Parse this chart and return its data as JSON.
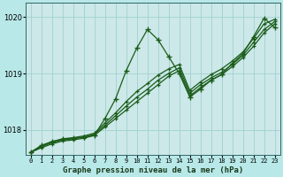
{
  "background_color": "#b8e8e8",
  "plot_bg_color": "#cce8e8",
  "grid_color": "#99cccc",
  "line_color": "#1a5c1a",
  "xlabel": "Graphe pression niveau de la mer (hPa)",
  "hours": [
    0,
    1,
    2,
    3,
    4,
    5,
    6,
    7,
    8,
    9,
    10,
    11,
    12,
    13,
    14,
    15,
    16,
    17,
    18,
    19,
    20,
    21,
    22,
    23
  ],
  "series_jagged": [
    1017.6,
    1017.72,
    1017.79,
    1017.83,
    1017.85,
    1017.87,
    1017.9,
    1018.2,
    1018.55,
    1019.05,
    1019.45,
    1019.78,
    1019.6,
    1019.3,
    1019.0,
    1018.58,
    1018.72,
    1018.88,
    1018.98,
    1019.18,
    1019.35,
    1019.65,
    1019.98,
    1019.82
  ],
  "series_low": [
    1017.6,
    1017.68,
    1017.75,
    1017.8,
    1017.82,
    1017.85,
    1017.9,
    1018.05,
    1018.2,
    1018.35,
    1018.5,
    1018.65,
    1018.8,
    1018.95,
    1019.05,
    1018.6,
    1018.75,
    1018.88,
    1018.98,
    1019.12,
    1019.28,
    1019.48,
    1019.72,
    1019.88
  ],
  "series_mid": [
    1017.6,
    1017.7,
    1017.77,
    1017.82,
    1017.84,
    1017.87,
    1017.92,
    1018.08,
    1018.25,
    1018.42,
    1018.58,
    1018.72,
    1018.88,
    1019.0,
    1019.1,
    1018.65,
    1018.8,
    1018.92,
    1019.02,
    1019.16,
    1019.32,
    1019.55,
    1019.78,
    1019.92
  ],
  "series_high": [
    1017.6,
    1017.72,
    1017.79,
    1017.84,
    1017.86,
    1017.89,
    1017.94,
    1018.12,
    1018.3,
    1018.5,
    1018.68,
    1018.82,
    1018.97,
    1019.08,
    1019.16,
    1018.7,
    1018.85,
    1018.98,
    1019.08,
    1019.22,
    1019.38,
    1019.62,
    1019.88,
    1019.96
  ],
  "ylim_min": 1017.55,
  "ylim_max": 1020.25,
  "yticks": [
    1018,
    1019,
    1020
  ],
  "xtick_labels": [
    "0",
    "1",
    "2",
    "3",
    "4",
    "5",
    "6",
    "7",
    "8",
    "9",
    "10",
    "11",
    "12",
    "13",
    "14",
    "15",
    "16",
    "17",
    "18",
    "19",
    "20",
    "21",
    "22",
    "23"
  ]
}
